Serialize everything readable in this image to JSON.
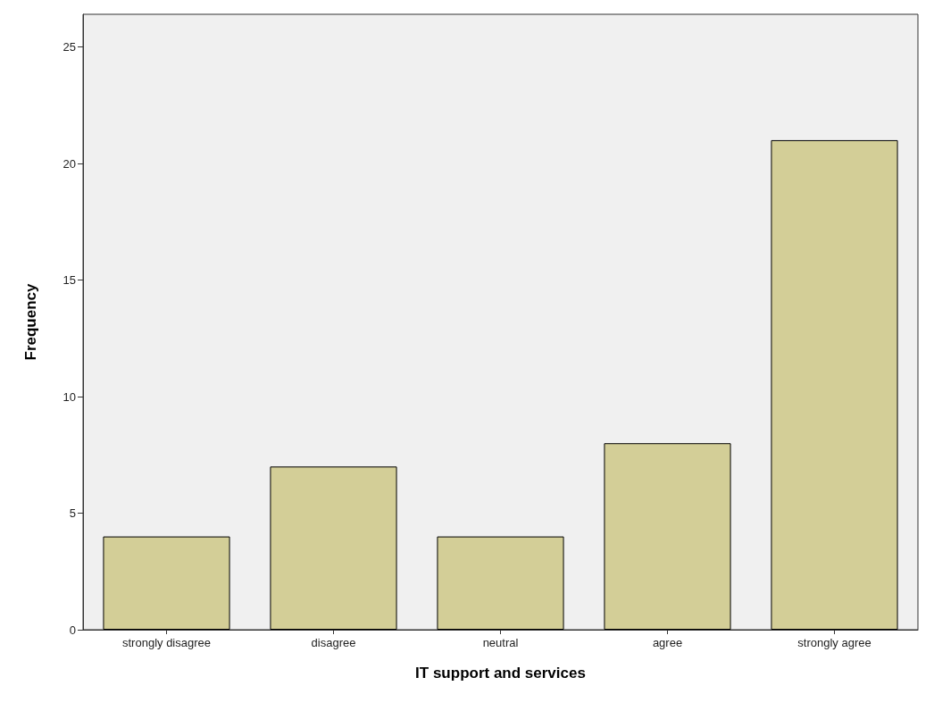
{
  "chart_data": {
    "type": "bar",
    "xlabel": "IT support and services",
    "ylabel": "Frequency",
    "categories": [
      "strongly disagree",
      "disagree",
      "neutral",
      "agree",
      "strongly agree"
    ],
    "values": [
      4,
      7,
      4,
      8,
      21
    ],
    "color": "#d3ce97",
    "ylim": [
      0,
      26.4
    ],
    "yticks": [
      0,
      5,
      10,
      15,
      20,
      25
    ],
    "grid": false
  }
}
